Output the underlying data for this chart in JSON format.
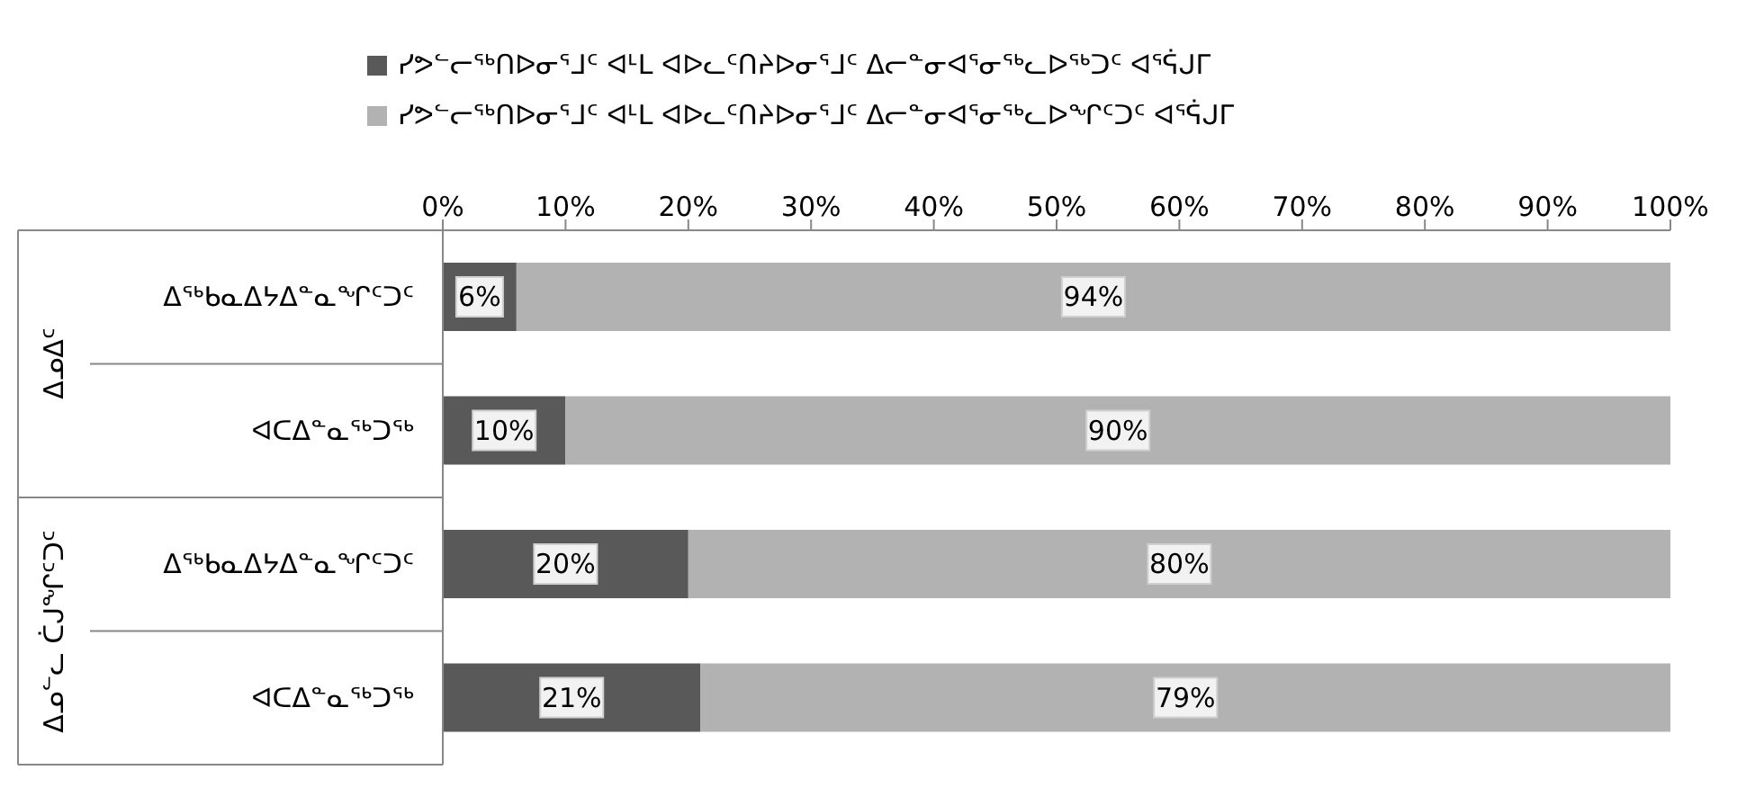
{
  "chart_data": {
    "type": "bar",
    "orientation": "horizontal",
    "stacked": true,
    "categories": [
      "ᐃᖅᑲᓇᐃᔭᐃᓐᓇᖏᑦᑐᑦ",
      "ᐊᑕᐃᓐᓇᖅᑐᖅ",
      "ᐃᖅᑲᓇᐃᔭᐃᓐᓇᖏᑦᑐᑦ",
      "ᐊᑕᐃᓐᓇᖅᑐᖅ"
    ],
    "series": [
      {
        "name": "ᓯᕗᓪᓕᖅᑎᐅᓂᕐᒧᑦ ᐊᒻᒪ ᐊᐅᓚᑦᑎᔨᐅᓂᕐᒧᑦ ᐃᓕᓐᓂᐊᕐᓂᖅᓚᐅᖅᑐᑦ ᐊᕐᕌᒍᒥ",
        "color": "#595959",
        "values": [
          6,
          10,
          20,
          21
        ],
        "value_labels": [
          "6%",
          "10%",
          "20%",
          "21%"
        ]
      },
      {
        "name": "ᓯᕗᓪᓕᖅᑎᐅᓂᕐᒧᑦ ᐊᒻᒪ ᐊᐅᓚᑦᑎᔨᐅᓂᕐᒧᑦ ᐃᓕᓐᓂᐊᕐᓂᖅᓚᐅᖏᑦᑐᑦ ᐊᕐᕌᒍᒥ",
        "color": "#b2b2b2",
        "values": [
          94,
          90,
          80,
          79
        ],
        "value_labels": [
          "94%",
          "90%",
          "80%",
          "79%"
        ]
      }
    ],
    "annotations": [
      "ᐃᓄᐃᑦ",
      "ᐃᓄᓪᓚ ᑖᒍᖏᑦᑐᑦ"
    ],
    "xlim": [
      0,
      100
    ],
    "xticks": [
      {
        "value": 0,
        "label": "0%"
      },
      {
        "value": 10,
        "label": "10%"
      },
      {
        "value": 20,
        "label": "20%"
      },
      {
        "value": 30,
        "label": "30%"
      },
      {
        "value": 40,
        "label": "40%"
      },
      {
        "value": 50,
        "label": "50%"
      },
      {
        "value": 60,
        "label": "60%"
      },
      {
        "value": 70,
        "label": "70%"
      },
      {
        "value": 80,
        "label": "80%"
      },
      {
        "value": 90,
        "label": "90%"
      },
      {
        "value": 100,
        "label": "100%"
      }
    ],
    "legend": "top",
    "grid": false
  }
}
